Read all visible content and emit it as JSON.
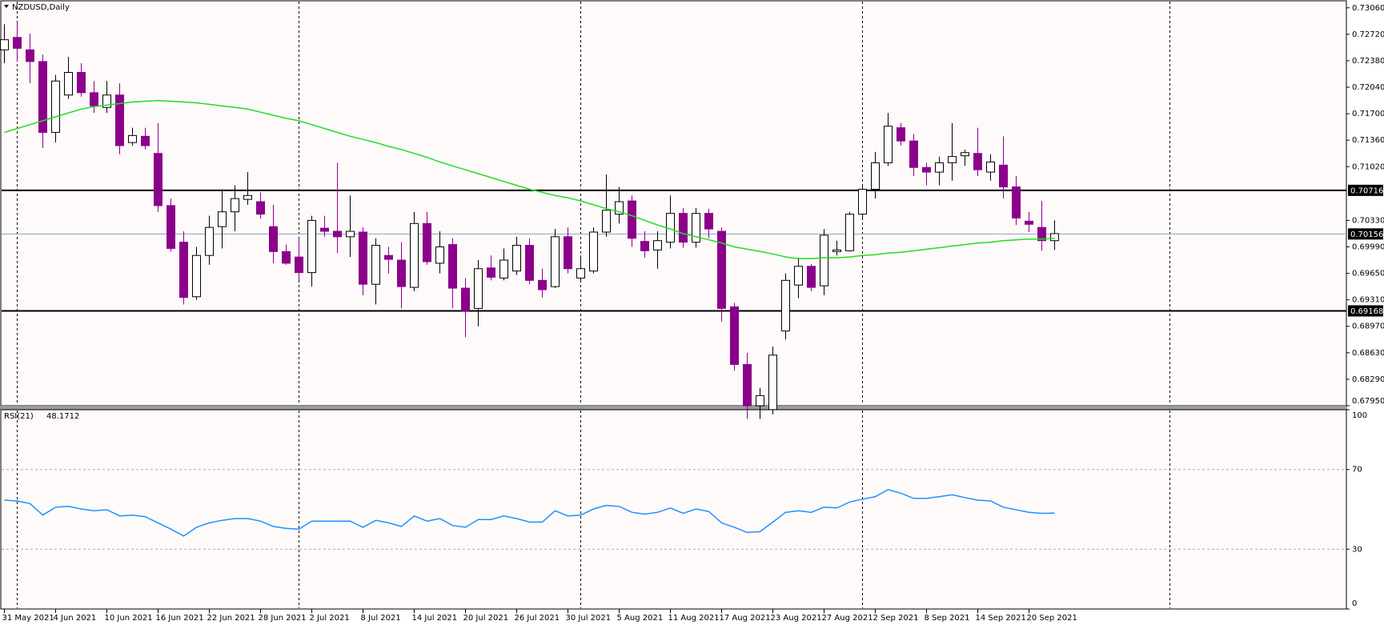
{
  "chart_data": [
    {
      "type": "candlestick",
      "title": "NZDUSD,Daily",
      "categories": [
        "31 May 2021",
        null,
        null,
        null,
        "4 Jun 2021",
        null,
        null,
        null,
        "10 Jun 2021",
        null,
        null,
        null,
        "16 Jun 2021",
        null,
        null,
        null,
        "22 Jun 2021",
        null,
        null,
        null,
        "28 Jun 2021",
        null,
        null,
        null,
        "2 Jul 2021",
        null,
        null,
        null,
        "8 Jul 2021",
        null,
        null,
        null,
        "14 Jul 2021",
        null,
        null,
        null,
        "20 Jul 2021",
        null,
        null,
        null,
        "26 Jul 2021",
        null,
        null,
        null,
        "30 Jul 2021",
        null,
        null,
        null,
        "5 Aug 2021",
        null,
        null,
        null,
        "11 Aug 2021",
        null,
        null,
        null,
        "17 Aug 2021",
        null,
        null,
        null,
        "23 Aug 2021",
        null,
        null,
        null,
        "27 Aug 2021",
        null,
        null,
        null,
        "2 Sep 2021",
        null,
        null,
        null,
        "8 Sep 2021",
        null,
        null,
        null,
        "14 Sep 2021",
        null,
        null,
        null,
        "20 Sep 2021",
        null,
        null
      ],
      "open": [
        0.7252,
        0.7268,
        0.7252,
        0.7237,
        0.7146,
        0.7194,
        0.7223,
        0.7197,
        0.7178,
        0.7194,
        0.7133,
        0.7141,
        0.7119,
        0.7052,
        0.7005,
        0.6935,
        0.6988,
        0.7025,
        0.7044,
        0.706,
        0.7057,
        0.7025,
        0.6993,
        0.6986,
        0.6966,
        0.7023,
        0.7019,
        0.7012,
        0.7018,
        0.6951,
        0.6988,
        0.6982,
        0.6947,
        0.7029,
        0.6978,
        0.7002,
        0.6946,
        0.692,
        0.6972,
        0.6959,
        0.6968,
        0.7001,
        0.6956,
        0.6948,
        0.7012,
        0.6959,
        0.6968,
        0.7018,
        0.7041,
        0.7058,
        0.7006,
        0.6995,
        0.7005,
        0.7042,
        0.7005,
        0.7042,
        0.7019,
        0.6922,
        0.6848,
        0.6795,
        0.679,
        0.6891,
        0.695,
        0.6974,
        0.6949,
        0.6993,
        0.6994,
        0.7041,
        0.7073,
        0.7107,
        0.7152,
        0.7135,
        0.7101,
        0.7095,
        0.7107,
        0.7116,
        0.7119,
        0.7095,
        0.7104,
        0.7076,
        0.7032,
        0.7024,
        0.7007
      ],
      "high": [
        0.7285,
        0.7288,
        0.7273,
        0.7246,
        0.722,
        0.7243,
        0.7235,
        0.7212,
        0.7212,
        0.7209,
        0.7152,
        0.7152,
        0.7158,
        0.7061,
        0.7019,
        0.6999,
        0.7039,
        0.7073,
        0.7078,
        0.7095,
        0.7069,
        0.7053,
        0.7002,
        0.701,
        0.7039,
        0.7039,
        0.7107,
        0.7065,
        0.7024,
        0.701,
        0.6999,
        0.7005,
        0.7044,
        0.7044,
        0.7019,
        0.701,
        0.6959,
        0.6982,
        0.6988,
        0.6997,
        0.7012,
        0.701,
        0.6971,
        0.7022,
        0.7024,
        0.6988,
        0.7024,
        0.7092,
        0.7076,
        0.7065,
        0.7019,
        0.7019,
        0.7065,
        0.7049,
        0.7049,
        0.7048,
        0.7024,
        0.6927,
        0.6863,
        0.6818,
        0.6871,
        0.6965,
        0.6985,
        0.6977,
        0.7022,
        0.7007,
        0.7044,
        0.7078,
        0.7121,
        0.7171,
        0.7158,
        0.7144,
        0.7107,
        0.7115,
        0.7158,
        0.7124,
        0.7152,
        0.7118,
        0.7141,
        0.709,
        0.7044,
        0.7058,
        0.7033
      ],
      "low": [
        0.7235,
        0.7237,
        0.7209,
        0.7126,
        0.7133,
        0.7189,
        0.7192,
        0.7171,
        0.7171,
        0.7118,
        0.7129,
        0.7124,
        0.7044,
        0.6993,
        0.6925,
        0.6931,
        0.6976,
        0.6997,
        0.7019,
        0.7053,
        0.7035,
        0.6978,
        0.6976,
        0.6956,
        0.6948,
        0.7012,
        0.6991,
        0.6986,
        0.6937,
        0.6925,
        0.6965,
        0.692,
        0.6942,
        0.6976,
        0.6965,
        0.692,
        0.6883,
        0.6897,
        0.6956,
        0.6956,
        0.6963,
        0.6951,
        0.6934,
        0.6946,
        0.6965,
        0.6954,
        0.6965,
        0.7012,
        0.7029,
        0.6999,
        0.6985,
        0.6971,
        0.6997,
        0.6998,
        0.6998,
        0.701,
        0.6903,
        0.684,
        0.6778,
        0.6778,
        0.6784,
        0.688,
        0.6933,
        0.6942,
        0.6937,
        0.6988,
        0.6993,
        0.7035,
        0.7061,
        0.7103,
        0.7129,
        0.709,
        0.7078,
        0.7078,
        0.7084,
        0.7103,
        0.709,
        0.7084,
        0.7061,
        0.7027,
        0.7018,
        0.6994,
        0.6995
      ],
      "close": [
        0.7265,
        0.7254,
        0.7237,
        0.7146,
        0.7212,
        0.7223,
        0.7197,
        0.718,
        0.7194,
        0.7129,
        0.7142,
        0.7129,
        0.7052,
        0.6997,
        0.6934,
        0.6988,
        0.7024,
        0.7044,
        0.7061,
        0.7065,
        0.7041,
        0.6993,
        0.6978,
        0.6966,
        0.7033,
        0.7019,
        0.7012,
        0.7019,
        0.6951,
        0.7001,
        0.6983,
        0.6948,
        0.7029,
        0.698,
        0.6999,
        0.6946,
        0.6917,
        0.6971,
        0.696,
        0.6982,
        0.7001,
        0.6956,
        0.6944,
        0.7012,
        0.6971,
        0.6971,
        0.7018,
        0.7046,
        0.7057,
        0.701,
        0.6994,
        0.7007,
        0.7042,
        0.7005,
        0.7042,
        0.7022,
        0.692,
        0.6848,
        0.6795,
        0.6808,
        0.686,
        0.6956,
        0.6974,
        0.6947,
        0.7014,
        0.6995,
        0.7041,
        0.7073,
        0.7107,
        0.7154,
        0.7135,
        0.7101,
        0.7095,
        0.7107,
        0.7115,
        0.712,
        0.7098,
        0.7108,
        0.7076,
        0.7036,
        0.7028,
        0.7007,
        0.7016
      ],
      "up_color": "#ffffff",
      "down_color": "#8b008b",
      "edge_color": "#000000",
      "overlay": {
        "color": "#22dd22",
        "values": [
          0.7146,
          0.7151,
          0.7156,
          0.7161,
          0.7166,
          0.7171,
          0.7176,
          0.7179,
          0.7181,
          0.7183,
          0.7185,
          0.7186,
          0.7187,
          0.7186,
          0.7185,
          0.7184,
          0.7182,
          0.718,
          0.7178,
          0.7176,
          0.7172,
          0.7168,
          0.7164,
          0.7161,
          0.7156,
          0.7151,
          0.7146,
          0.7141,
          0.7137,
          0.7133,
          0.7128,
          0.7124,
          0.7119,
          0.7114,
          0.7108,
          0.7103,
          0.7098,
          0.7093,
          0.7088,
          0.7083,
          0.7078,
          0.7073,
          0.7069,
          0.7065,
          0.7062,
          0.7058,
          0.7053,
          0.7048,
          0.7044,
          0.7039,
          0.7033,
          0.7027,
          0.7022,
          0.7016,
          0.7012,
          0.7008,
          0.7004,
          0.6999,
          0.6996,
          0.6993,
          0.699,
          0.6986,
          0.6984,
          0.6984,
          0.6985,
          0.6985,
          0.6986,
          0.6988,
          0.6989,
          0.6991,
          0.6992,
          0.6994,
          0.6996,
          0.6998,
          0.7,
          0.7002,
          0.7004,
          0.7005,
          0.7007,
          0.7008,
          0.7009,
          0.7009,
          0.701
        ]
      },
      "ylim": [
        0.6795,
        0.7315
      ],
      "yticks": [
        {
          "value": 0.7306,
          "label": "0.73060"
        },
        {
          "value": 0.7272,
          "label": "0.72720"
        },
        {
          "value": 0.7238,
          "label": "0.72380"
        },
        {
          "value": 0.7204,
          "label": "0.72040"
        },
        {
          "value": 0.717,
          "label": "0.71700"
        },
        {
          "value": 0.7136,
          "label": "0.71360"
        },
        {
          "value": 0.7102,
          "label": "0.71020"
        },
        {
          "value": 0.7033,
          "label": "0.70330"
        },
        {
          "value": 0.6999,
          "label": "0.69990"
        },
        {
          "value": 0.6965,
          "label": "0.69650"
        },
        {
          "value": 0.6931,
          "label": "0.69310"
        },
        {
          "value": 0.6897,
          "label": "0.68970"
        },
        {
          "value": 0.6863,
          "label": "0.68630"
        },
        {
          "value": 0.6829,
          "label": "0.68290"
        },
        {
          "value": 0.6795,
          "label": "0.67950"
        }
      ],
      "hlines": [
        {
          "value": 0.70716,
          "label": "0.70716"
        },
        {
          "value": 0.69168,
          "label": "0.69168"
        }
      ],
      "last_price": {
        "value": 0.70156,
        "label": "0.70156"
      }
    },
    {
      "type": "line",
      "title": "RSI(21)",
      "series": [
        {
          "color": "#1e90ff",
          "values": [
            54.6,
            54.2,
            52.9,
            47.1,
            51.1,
            51.5,
            50.2,
            49.3,
            49.8,
            46.7,
            47.1,
            46.3,
            43.2,
            40.1,
            36.6,
            41.0,
            43.2,
            44.5,
            45.4,
            45.4,
            44.1,
            41.4,
            40.5,
            40.1,
            44.1,
            44.1,
            44.1,
            44.1,
            41.0,
            44.5,
            43.2,
            41.4,
            46.7,
            44.1,
            45.4,
            41.9,
            41.0,
            44.9,
            44.9,
            46.7,
            45.4,
            43.6,
            43.6,
            49.3,
            46.7,
            47.1,
            50.2,
            52.0,
            51.5,
            48.5,
            47.6,
            48.5,
            50.7,
            48.0,
            50.2,
            48.9,
            43.2,
            41.0,
            38.4,
            38.8,
            43.6,
            48.5,
            49.3,
            48.5,
            51.1,
            50.7,
            53.7,
            55.1,
            56.4,
            59.9,
            58.1,
            55.5,
            55.5,
            56.4,
            57.3,
            55.9,
            54.6,
            54.2,
            51.1,
            49.8,
            48.5,
            48.0,
            48.1712
          ]
        }
      ],
      "ylim": [
        0,
        100
      ],
      "yticks": [
        100,
        70,
        30,
        0
      ]
    }
  ]
}
